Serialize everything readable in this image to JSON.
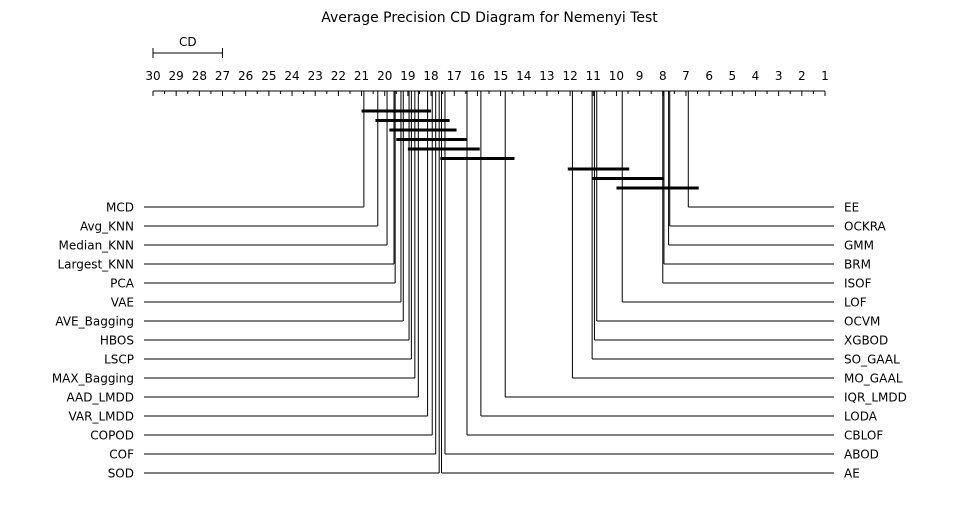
{
  "chart_data": {
    "type": "cd_diagram",
    "title": "Average Precision CD Diagram for Nemenyi Test",
    "cd_label": "CD",
    "cd_value": 3.0,
    "axis": {
      "min": 1,
      "max": 30,
      "reversed": true,
      "tick_labels": [
        "30",
        "29",
        "28",
        "27",
        "26",
        "25",
        "24",
        "23",
        "22",
        "21",
        "20",
        "19",
        "18",
        "17",
        "16",
        "15",
        "14",
        "13",
        "12",
        "11",
        "10",
        "9",
        "8",
        "7",
        "6",
        "5",
        "4",
        "3",
        "2",
        "1"
      ]
    },
    "left_methods": [
      {
        "name": "MCD",
        "rank": 20.9
      },
      {
        "name": "Avg_KNN",
        "rank": 20.3
      },
      {
        "name": "Median_KNN",
        "rank": 19.9
      },
      {
        "name": "Largest_KNN",
        "rank": 19.6
      },
      {
        "name": "PCA",
        "rank": 19.55
      },
      {
        "name": "VAE",
        "rank": 19.3
      },
      {
        "name": "AVE_Bagging",
        "rank": 19.2
      },
      {
        "name": "HBOS",
        "rank": 18.95
      },
      {
        "name": "LSCP",
        "rank": 18.85
      },
      {
        "name": "MAX_Bagging",
        "rank": 18.7
      },
      {
        "name": "AAD_LMDD",
        "rank": 18.55
      },
      {
        "name": "VAR_LMDD",
        "rank": 18.15
      },
      {
        "name": "COPOD",
        "rank": 17.95
      },
      {
        "name": "COF",
        "rank": 17.8
      },
      {
        "name": "SOD",
        "rank": 17.65
      }
    ],
    "right_methods": [
      {
        "name": "EE",
        "rank": 6.9
      },
      {
        "name": "OCKRA",
        "rank": 7.7
      },
      {
        "name": "GMM",
        "rank": 7.75
      },
      {
        "name": "BRM",
        "rank": 7.95
      },
      {
        "name": "ISOF",
        "rank": 8.0
      },
      {
        "name": "LOF",
        "rank": 9.75
      },
      {
        "name": "OCVM",
        "rank": 10.85
      },
      {
        "name": "XGBOD",
        "rank": 10.95
      },
      {
        "name": "SO_GAAL",
        "rank": 11.05
      },
      {
        "name": "MO_GAAL",
        "rank": 11.9
      },
      {
        "name": "IQR_LMDD",
        "rank": 14.8
      },
      {
        "name": "LODA",
        "rank": 15.85
      },
      {
        "name": "CBLOF",
        "rank": 16.45
      },
      {
        "name": "ABOD",
        "rank": 17.4
      },
      {
        "name": "AE",
        "rank": 17.55
      }
    ],
    "cliques": [
      {
        "from": 21.0,
        "to": 18.0
      },
      {
        "from": 20.4,
        "to": 17.2
      },
      {
        "from": 19.8,
        "to": 16.9
      },
      {
        "from": 19.5,
        "to": 16.45
      },
      {
        "from": 19.0,
        "to": 15.9
      },
      {
        "from": 17.6,
        "to": 14.4
      },
      {
        "from": 12.1,
        "to": 9.45
      },
      {
        "from": 11.05,
        "to": 7.95
      },
      {
        "from": 10.0,
        "to": 6.45
      }
    ]
  }
}
